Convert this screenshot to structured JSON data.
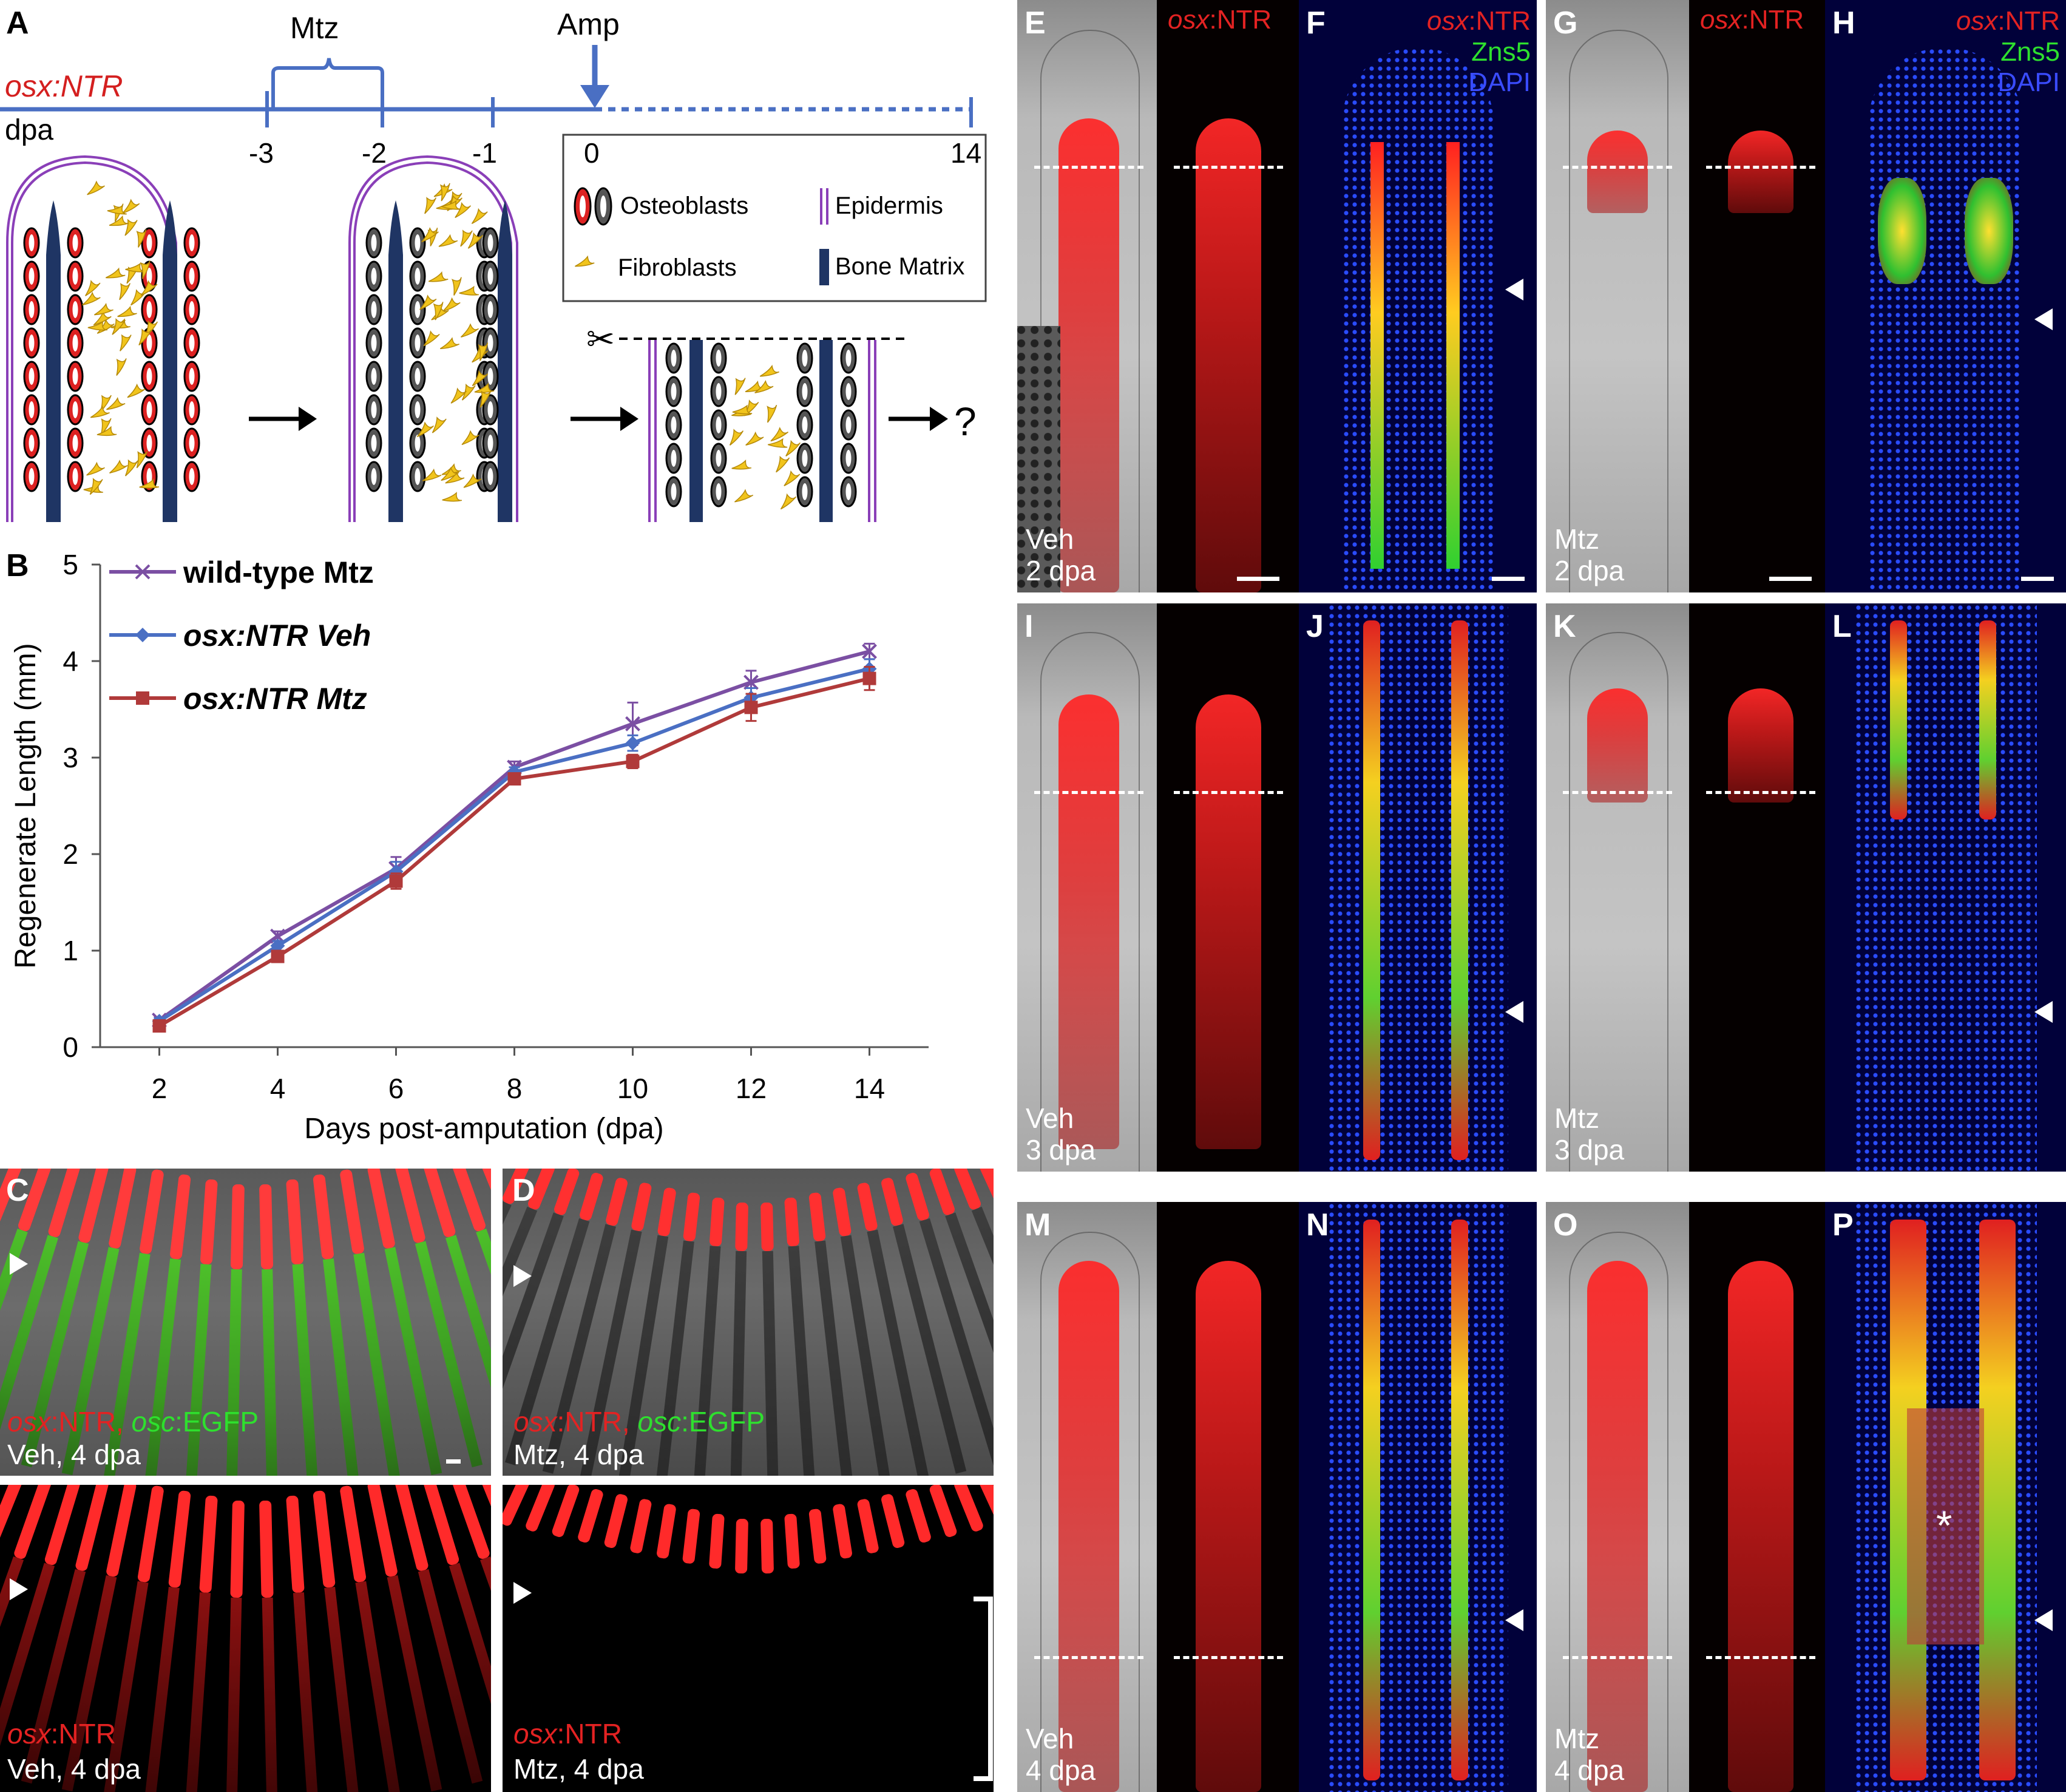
{
  "panel_labels": {
    "A": "A",
    "B": "B",
    "C": "C",
    "D": "D",
    "E": "E",
    "F": "F",
    "G": "G",
    "H": "H",
    "I": "I",
    "J": "J",
    "K": "K",
    "L": "L",
    "M": "M",
    "N": "N",
    "O": "O",
    "P": "P"
  },
  "panel_a": {
    "mtz_label": "Mtz",
    "amp_label": "Amp",
    "genotype": "osx:NTR",
    "dpa_label": "dpa",
    "ticks": [
      "-3",
      "-2",
      "-1",
      "0",
      "14"
    ],
    "legend": {
      "osteoblasts": "Osteoblasts",
      "fibroblasts": "Fibroblasts",
      "epidermis": "Epidermis",
      "bone_matrix": "Bone Matrix"
    },
    "question": "?"
  },
  "chart_data": {
    "type": "line",
    "xlabel": "Days post-amputation (dpa)",
    "ylabel": "Regenerate Length (mm)",
    "x": [
      2,
      4,
      6,
      8,
      10,
      12,
      14
    ],
    "xlim": [
      1,
      15
    ],
    "ylim": [
      0,
      5
    ],
    "yticks": [
      "0",
      "1",
      "2",
      "3",
      "4",
      "5"
    ],
    "xticks": [
      "2",
      "4",
      "6",
      "8",
      "10",
      "12",
      "14"
    ],
    "legend_position": "top-left",
    "series": [
      {
        "name": "wild-type  Mtz",
        "color": "#7b4fa3",
        "marker": "x",
        "values": [
          0.28,
          1.15,
          1.85,
          2.9,
          3.35,
          3.78,
          4.1
        ],
        "errors": [
          0.03,
          0.05,
          0.12,
          0.06,
          0.22,
          0.12,
          0.08
        ]
      },
      {
        "name": "osx:NTR   Veh",
        "color": "#4a6fc3",
        "marker": "diamond",
        "values": [
          0.27,
          1.05,
          1.82,
          2.85,
          3.15,
          3.62,
          3.92
        ],
        "errors": [
          0.03,
          0.05,
          0.1,
          0.05,
          0.08,
          0.1,
          0.1
        ]
      },
      {
        "name": "osx:NTR   Mtz",
        "color": "#b03a3a",
        "marker": "square",
        "values": [
          0.22,
          0.94,
          1.72,
          2.78,
          2.96,
          3.52,
          3.82
        ],
        "errors": [
          0.03,
          0.04,
          0.08,
          0.05,
          0.07,
          0.14,
          0.12
        ]
      }
    ]
  },
  "texts": {
    "osx": "osx",
    "osc": "osc",
    "ntr": ":NTR",
    "ntr_comma": ":NTR, ",
    "egfp": ":EGFP",
    "zns5": "Zns5",
    "dapi": "DAPI",
    "veh_4dpa": "Veh, 4 dpa",
    "mtz_4dpa": "Mtz, 4 dpa",
    "veh": "Veh",
    "mtz": "Mtz",
    "dpa2": "2 dpa",
    "dpa3": "3 dpa",
    "dpa4": "4 dpa",
    "asterisk": "*"
  }
}
